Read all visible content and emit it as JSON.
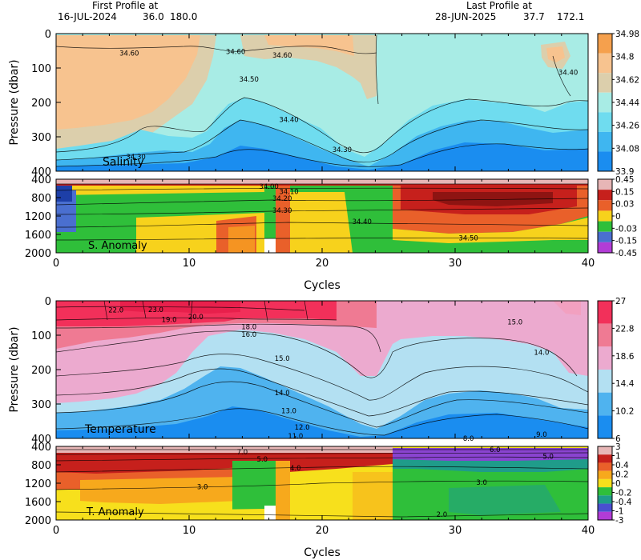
{
  "header": {
    "first_label": "First Profile at",
    "first_date": "16-JUL-2024",
    "first_lat": "36.0",
    "first_lon": "180.0",
    "last_label": "Last Profile at",
    "last_date": "28-JUN-2025",
    "last_lat": "37.7",
    "last_lon": "172.1"
  },
  "chart_data": [
    {
      "type": "heatmap",
      "panel": "salinity",
      "title": "Salinity",
      "ylabel": "Pressure (dbar)",
      "xlim": [
        0,
        40
      ],
      "ylim": [
        0,
        400
      ],
      "yticks": [
        0,
        100,
        200,
        300,
        400
      ],
      "colorbar": [
        "34.98",
        "34.8",
        "34.62",
        "34.44",
        "34.26",
        "34.08",
        "33.9"
      ],
      "colors": [
        "#f5a04d",
        "#f7c38f",
        "#dccfac",
        "#a8ece5",
        "#6fdcef",
        "#3fb6f0",
        "#1a8df0"
      ],
      "contours": [
        {
          "label": "34.60",
          "x": 5.5,
          "y": 57
        },
        {
          "label": "34.60",
          "x": 13.5,
          "y": 52
        },
        {
          "label": "34.60",
          "x": 17,
          "y": 63
        },
        {
          "label": "34.50",
          "x": 14.5,
          "y": 133
        },
        {
          "label": "34.40",
          "x": 17.5,
          "y": 250
        },
        {
          "label": "34.30",
          "x": 6,
          "y": 358
        },
        {
          "label": "34.30",
          "x": 21.5,
          "y": 337
        },
        {
          "label": "34.40",
          "x": 38.5,
          "y": 113
        }
      ]
    },
    {
      "type": "heatmap",
      "panel": "salinity-anomaly",
      "title": "S. Anomaly",
      "xlim": [
        0,
        40
      ],
      "ylim": [
        400,
        2000
      ],
      "yticks": [
        400,
        800,
        1200,
        1600,
        2000
      ],
      "colorbar": [
        "0.45",
        "0.15",
        "0.03",
        "0",
        "-0.03",
        "-0.15",
        "-0.45"
      ],
      "colors": [
        "#e7b6b6",
        "#c6201c",
        "#e9602a",
        "#f7d21c",
        "#2fbf3a",
        "#4a6fd0",
        "#b23cd6"
      ],
      "contours": [
        {
          "label": "34.00",
          "x": 16,
          "y": 560
        },
        {
          "label": "34.10",
          "x": 17.5,
          "y": 670
        },
        {
          "label": "34.20",
          "x": 17,
          "y": 820
        },
        {
          "label": "34.30",
          "x": 17,
          "y": 1080
        },
        {
          "label": "34.40",
          "x": 23,
          "y": 1320
        },
        {
          "label": "34.50",
          "x": 31,
          "y": 1680
        }
      ]
    },
    {
      "type": "heatmap",
      "panel": "temperature",
      "title": "Temperature",
      "ylabel": "Pressure (dbar)",
      "xlim": [
        0,
        40
      ],
      "ylim": [
        0,
        400
      ],
      "yticks": [
        0,
        100,
        200,
        300,
        400
      ],
      "colorbar": [
        "27",
        "22.8",
        "18.6",
        "14.4",
        "10.2",
        "6"
      ],
      "colors": [
        "#f2305a",
        "#ef7a93",
        "#ecaacf",
        "#b3e0f2",
        "#4fb3ef",
        "#1a8df0"
      ],
      "contours": [
        {
          "label": "22.0",
          "x": 4.5,
          "y": 27
        },
        {
          "label": "23.0",
          "x": 7.5,
          "y": 25
        },
        {
          "label": "20.0",
          "x": 10.5,
          "y": 47
        },
        {
          "label": "19.0",
          "x": 8.5,
          "y": 55
        },
        {
          "label": "18.0",
          "x": 14.5,
          "y": 75
        },
        {
          "label": "16.0",
          "x": 14.5,
          "y": 98
        },
        {
          "label": "15.0",
          "x": 17,
          "y": 167
        },
        {
          "label": "15.0",
          "x": 34.5,
          "y": 62
        },
        {
          "label": "14.0",
          "x": 17,
          "y": 267
        },
        {
          "label": "14.0",
          "x": 36.5,
          "y": 150
        },
        {
          "label": "13.0",
          "x": 17.5,
          "y": 320
        },
        {
          "label": "12.0",
          "x": 18.5,
          "y": 368
        },
        {
          "label": "11.0",
          "x": 18,
          "y": 393
        },
        {
          "label": "9.0",
          "x": 36.5,
          "y": 388
        },
        {
          "label": "8.0",
          "x": 31,
          "y": 400
        }
      ]
    },
    {
      "type": "heatmap",
      "panel": "temperature-anomaly",
      "title": "T. Anomaly",
      "xlabel": "Cycles",
      "xlim": [
        0,
        40
      ],
      "ylim": [
        400,
        2000
      ],
      "yticks": [
        400,
        800,
        1200,
        1600,
        2000
      ],
      "xticks": [
        0,
        10,
        20,
        30,
        40
      ],
      "colorbar": [
        "3",
        "1",
        "0.4",
        "0.2",
        "0",
        "-0.2",
        "-0.4",
        "-1",
        "-3"
      ],
      "colors": [
        "#e7b6b6",
        "#c6201c",
        "#e9602a",
        "#f7a91c",
        "#f7e01c",
        "#2fbf3a",
        "#1f9c8a",
        "#4a4fd0",
        "#b23cd6"
      ],
      "contours": [
        {
          "label": "7.0",
          "x": 14,
          "y": 520
        },
        {
          "label": "5.0",
          "x": 15.5,
          "y": 680
        },
        {
          "label": "4.0",
          "x": 18,
          "y": 870
        },
        {
          "label": "3.0",
          "x": 11,
          "y": 1280
        },
        {
          "label": "3.0",
          "x": 32,
          "y": 1180
        },
        {
          "label": "6.0",
          "x": 33,
          "y": 470
        },
        {
          "label": "5.0",
          "x": 37,
          "y": 620
        },
        {
          "label": "2.0",
          "x": 29,
          "y": 1880
        }
      ]
    }
  ]
}
